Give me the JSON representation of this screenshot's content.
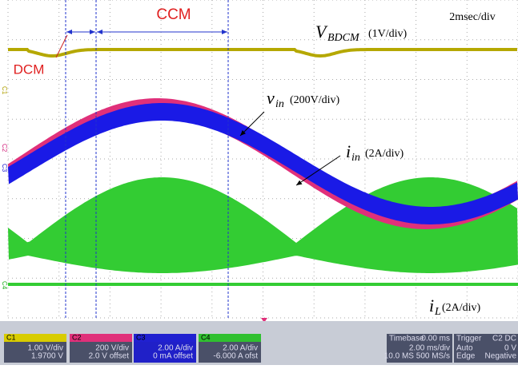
{
  "annotations": {
    "ccm": "CCM",
    "dcm": "DCM",
    "timebase_note": "2msec/div",
    "vbdcm": {
      "symbol": "V",
      "sub": "BDCM",
      "scale": "(1V/div)"
    },
    "vin": {
      "symbol": "v",
      "sub": "in",
      "scale": "(200V/div)"
    },
    "iin": {
      "symbol": "i",
      "sub": "in",
      "scale": "(2A/div)"
    },
    "il": {
      "symbol": "i",
      "sub": "L",
      "scale": "(2A/div)"
    }
  },
  "channel_markers": [
    "C1",
    "C2",
    "C3",
    "C4"
  ],
  "panel": {
    "channels": [
      {
        "name": "C1",
        "lines": [
          "1.00 V/div",
          "1.9700 V"
        ]
      },
      {
        "name": "C2",
        "lines": [
          "200 V/div",
          "2.0 V offset"
        ]
      },
      {
        "name": "C3",
        "lines": [
          "2.00 A/div",
          "0 mA offset"
        ]
      },
      {
        "name": "C4",
        "lines": [
          "2.00 A/div",
          "-6.000 A ofst"
        ]
      }
    ],
    "timebase": {
      "title": "Timebase",
      "delay": "0.00 ms",
      "lines": [
        "2.00 ms/div",
        "10.0 MS   500 MS/s"
      ]
    },
    "trigger": {
      "title": "Trigger",
      "source": "C2 DC",
      "lines": [
        "Auto",
        "0 V",
        "Edge",
        "Negative"
      ]
    }
  }
}
